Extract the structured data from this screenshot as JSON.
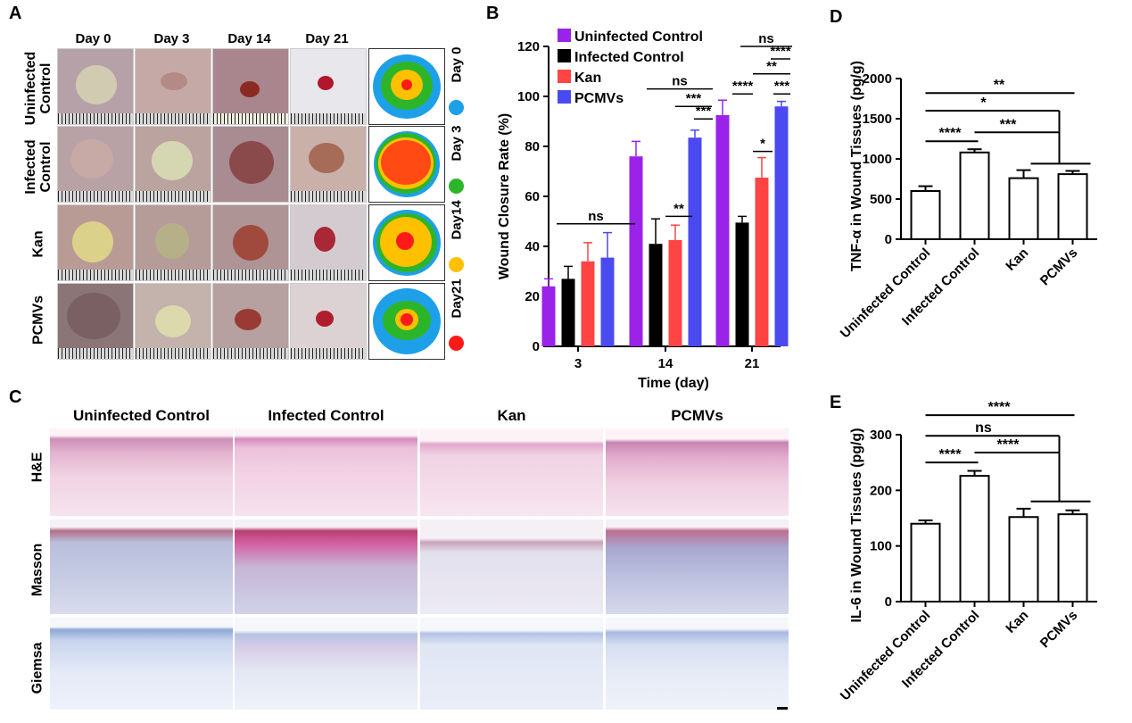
{
  "panels": {
    "a": "A",
    "b": "B",
    "c": "C",
    "d": "D",
    "e": "E"
  },
  "panel_a": {
    "days": [
      "Day 0",
      "Day 3",
      "Day 14",
      "Day 21"
    ],
    "groups": [
      "Uninfected Control",
      "Infected Control",
      "Kan",
      "PCMVs"
    ],
    "group_lines": [
      [
        "Uninfected",
        "Control"
      ],
      [
        "Infected",
        "Control"
      ],
      [
        "Kan"
      ],
      [
        "PCMVs"
      ]
    ],
    "legend": [
      {
        "label": "Day 0",
        "color": "#1ea0e8"
      },
      {
        "label": "Day 3",
        "color": "#2db52a"
      },
      {
        "label": "Day14",
        "color": "#ffc000"
      },
      {
        "label": "Day21",
        "color": "#ff1a1a"
      }
    ]
  },
  "panel_c": {
    "columns": [
      "Uninfected Control",
      "Infected Control",
      "Kan",
      "PCMVs"
    ],
    "stains": [
      "H&E",
      "Masson",
      "Giemsa"
    ]
  },
  "chart_data": [
    {
      "id": "B",
      "type": "bar",
      "title": "",
      "xlabel": "Time (day)",
      "ylabel": "Wound Closure Rate (%)",
      "ylim": [
        0,
        120
      ],
      "yticks": [
        0,
        20,
        40,
        60,
        80,
        100,
        120
      ],
      "categories": [
        "3",
        "14",
        "21"
      ],
      "series": [
        {
          "name": "Uninfected Control",
          "color": "#9b22e8",
          "values": [
            24,
            76,
            92.5
          ],
          "errors": [
            3,
            6,
            6
          ]
        },
        {
          "name": "Infected Control",
          "color": "#000000",
          "values": [
            27,
            41,
            49.5
          ],
          "errors": [
            5,
            10,
            2.5
          ]
        },
        {
          "name": "Kan",
          "color": "#ff4444",
          "values": [
            34,
            42.5,
            67.5
          ],
          "errors": [
            7.5,
            6,
            8
          ]
        },
        {
          "name": "PCMVs",
          "color": "#4a4af0",
          "values": [
            35.5,
            83.5,
            96
          ],
          "errors": [
            10,
            3,
            2
          ]
        }
      ],
      "significance": [
        "ns",
        "**",
        "ns",
        "***",
        "***",
        "ns",
        "****",
        "**",
        "****",
        "*",
        "***"
      ]
    },
    {
      "id": "D",
      "type": "bar",
      "title": "",
      "ylabel": "TNF-α in Wound Tissues (pg/g)",
      "ylim": [
        0,
        2000
      ],
      "yticks": [
        0,
        500,
        1000,
        1500,
        2000
      ],
      "categories": [
        "Uninfected Control",
        "Infected Control",
        "Kan",
        "PCMVs"
      ],
      "values": [
        600,
        1080,
        760,
        810
      ],
      "errors": [
        60,
        40,
        100,
        40
      ],
      "significance": [
        "**",
        "*",
        "****",
        "***"
      ]
    },
    {
      "id": "E",
      "type": "bar",
      "title": "",
      "ylabel": "IL-6 in Wound Tissues (pg/g)",
      "ylim": [
        0,
        300
      ],
      "yticks": [
        0,
        100,
        200,
        300
      ],
      "categories": [
        "Uninfected Control",
        "Infected Control",
        "Kan",
        "PCMVs"
      ],
      "values": [
        140,
        226,
        152,
        157
      ],
      "errors": [
        6,
        9,
        15,
        7
      ],
      "significance": [
        "****",
        "ns",
        "****",
        "****"
      ]
    }
  ]
}
